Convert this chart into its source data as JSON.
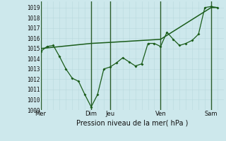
{
  "background_color": "#cde8ec",
  "line_color": "#1a5c1a",
  "grid_color_minor": "#b8d8dc",
  "grid_color_major": "#88b8bc",
  "xlabel": "Pression niveau de la mer( hPa )",
  "ylim": [
    1009,
    1019.6
  ],
  "ytick_vals": [
    1009,
    1010,
    1011,
    1012,
    1013,
    1014,
    1015,
    1016,
    1017,
    1018,
    1019
  ],
  "day_labels": [
    "Mer",
    "Dim",
    "Jeu",
    "Ven",
    "Sam"
  ],
  "day_x": [
    0.0,
    8.0,
    11.0,
    19.0,
    27.0
  ],
  "xmax": 29.0,
  "series1_x": [
    0,
    1,
    2,
    3,
    4,
    5,
    6,
    7,
    8,
    9,
    10,
    11,
    12,
    13,
    14,
    15,
    16,
    17,
    18,
    19,
    20,
    21,
    22,
    23,
    24,
    25,
    26,
    27,
    28
  ],
  "series1_y": [
    1014.7,
    1015.2,
    1015.3,
    1014.2,
    1013.0,
    1012.1,
    1011.8,
    1010.5,
    1009.3,
    1010.5,
    1013.0,
    1013.2,
    1013.6,
    1014.1,
    1013.7,
    1013.3,
    1013.5,
    1015.5,
    1015.5,
    1015.2,
    1016.6,
    1015.9,
    1015.3,
    1015.5,
    1015.8,
    1016.4,
    1019.0,
    1019.1,
    1019.0
  ],
  "series2_x": [
    0,
    8,
    11,
    19,
    27,
    28
  ],
  "series2_y": [
    1015.0,
    1015.5,
    1015.6,
    1015.9,
    1019.0,
    1019.0
  ]
}
